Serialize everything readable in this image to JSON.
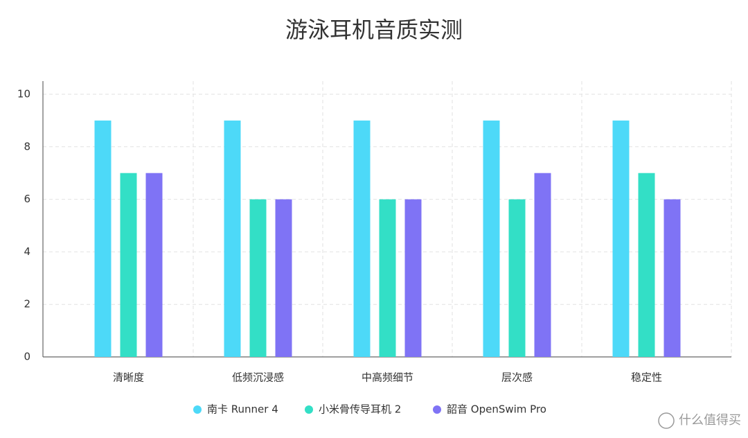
{
  "chart_data": {
    "type": "bar",
    "title": "游泳耳机音质实测",
    "categories": [
      "清晰度",
      "低频沉浸感",
      "中高频细节",
      "层次感",
      "稳定性"
    ],
    "series": [
      {
        "name": "南卡 Runner 4",
        "color": "#4dd9f8",
        "values": [
          9,
          9,
          9,
          9,
          9
        ]
      },
      {
        "name": "小米骨传导耳机 2",
        "color": "#33dfc6",
        "values": [
          7,
          6,
          6,
          6,
          7
        ]
      },
      {
        "name": "韶音 OpenSwim Pro",
        "color": "#7f73f5",
        "values": [
          7,
          6,
          6,
          7,
          6
        ]
      }
    ],
    "ylim": [
      0,
      10
    ],
    "yticks": [
      0,
      2,
      4,
      6,
      8,
      10
    ],
    "grid": true,
    "legend": "bottom"
  },
  "watermark": "什么值得买"
}
